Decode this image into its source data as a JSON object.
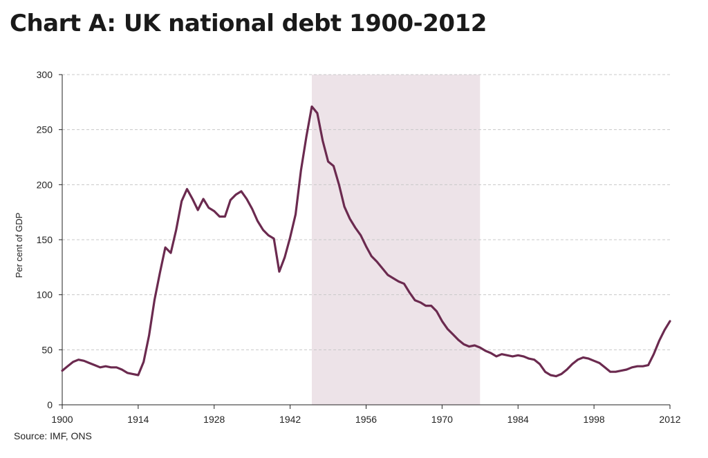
{
  "title": "Chart A: UK national debt 1900-2012",
  "source": "Source: IMF, ONS",
  "chart_data": {
    "type": "line",
    "title": "Chart A: UK national debt 1900-2012",
    "xlabel": "",
    "ylabel": "Per cent of GDP",
    "xlim": [
      1900,
      2012
    ],
    "ylim": [
      0,
      300
    ],
    "x_ticks": [
      1900,
      1914,
      1928,
      1942,
      1956,
      1970,
      1984,
      1998,
      2012
    ],
    "y_ticks": [
      0,
      50,
      100,
      150,
      200,
      250,
      300
    ],
    "grid": "horizontal dashed",
    "line_color": "#6b2a4f",
    "shaded_region": {
      "x_start": 1946,
      "x_end": 1977,
      "color": "#ede3e8"
    },
    "series": [
      {
        "x": [
          1900,
          1901,
          1902,
          1903,
          1904,
          1905,
          1906,
          1907,
          1908,
          1909,
          1910,
          1911,
          1912,
          1913,
          1914,
          1915,
          1916,
          1917,
          1918,
          1919,
          1920,
          1921,
          1922,
          1923,
          1924,
          1925,
          1926,
          1927,
          1928,
          1929,
          1930,
          1931,
          1932,
          1933,
          1934,
          1935,
          1936,
          1937,
          1938,
          1939,
          1940,
          1941,
          1942,
          1943,
          1944,
          1945,
          1946,
          1947,
          1948,
          1949,
          1950,
          1951,
          1952,
          1953,
          1954,
          1955,
          1956,
          1957,
          1958,
          1959,
          1960,
          1961,
          1962,
          1963,
          1964,
          1965,
          1966,
          1967,
          1968,
          1969,
          1970,
          1971,
          1972,
          1973,
          1974,
          1975,
          1976,
          1977,
          1978,
          1979,
          1980,
          1981,
          1982,
          1983,
          1984,
          1985,
          1986,
          1987,
          1988,
          1989,
          1990,
          1991,
          1992,
          1993,
          1994,
          1995,
          1996,
          1997,
          1998,
          1999,
          2000,
          2001,
          2002,
          2003,
          2004,
          2005,
          2006,
          2007,
          2008,
          2009,
          2010,
          2011,
          2012
        ],
        "values": [
          31,
          35,
          39,
          41,
          40,
          38,
          36,
          34,
          35,
          34,
          34,
          32,
          29,
          28,
          27,
          39,
          63,
          95,
          120,
          143,
          138,
          159,
          185,
          196,
          187,
          177,
          187,
          179,
          176,
          171,
          171,
          186,
          191,
          194,
          187,
          178,
          167,
          159,
          154,
          151,
          121,
          134,
          152,
          173,
          213,
          244,
          271,
          265,
          240,
          221,
          217,
          200,
          180,
          169,
          161,
          154,
          144,
          135,
          130,
          124,
          118,
          115,
          112,
          110,
          102,
          95,
          93,
          90,
          90,
          85,
          76,
          69,
          64,
          59,
          55,
          53,
          54,
          52,
          49,
          47,
          44,
          46,
          45,
          44,
          45,
          44,
          42,
          41,
          37,
          30,
          27,
          26,
          28,
          32,
          37,
          41,
          43,
          42,
          40,
          38,
          34,
          30,
          30,
          31,
          32,
          34,
          35,
          35,
          36,
          46,
          58,
          68,
          76
        ]
      }
    ]
  }
}
